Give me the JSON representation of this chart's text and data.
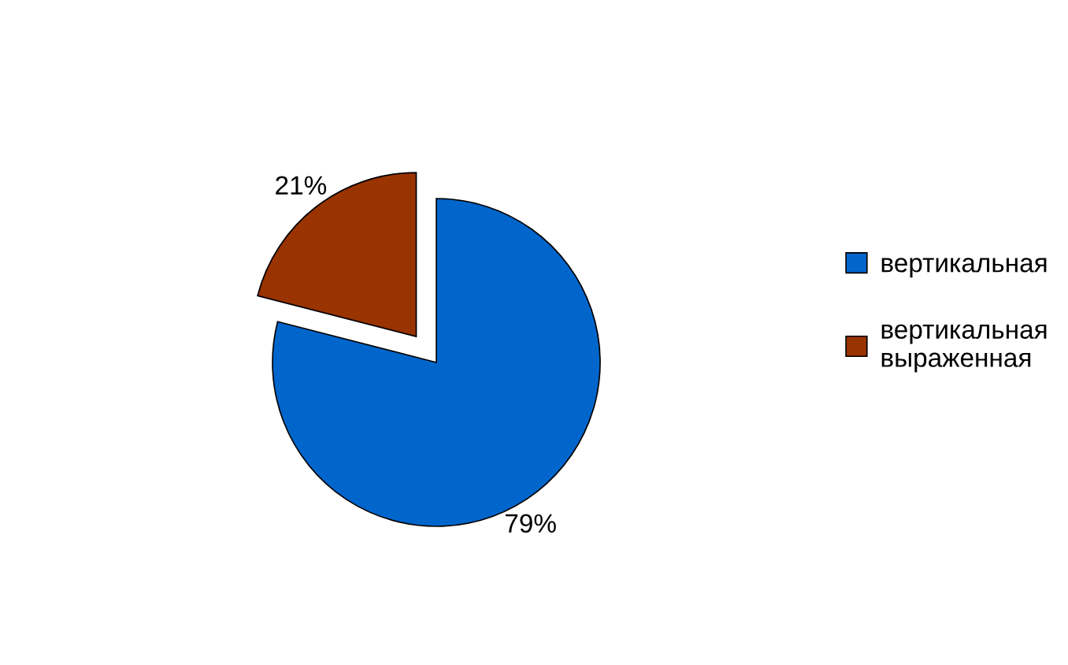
{
  "chart_data": {
    "type": "pie",
    "categories": [
      "вертикальная",
      "вертикальная\nвыраженная"
    ],
    "values": [
      79,
      21
    ],
    "colors": [
      "#0066cc",
      "#993300"
    ],
    "value_labels": [
      "79%",
      "21%"
    ],
    "legend": "right"
  }
}
